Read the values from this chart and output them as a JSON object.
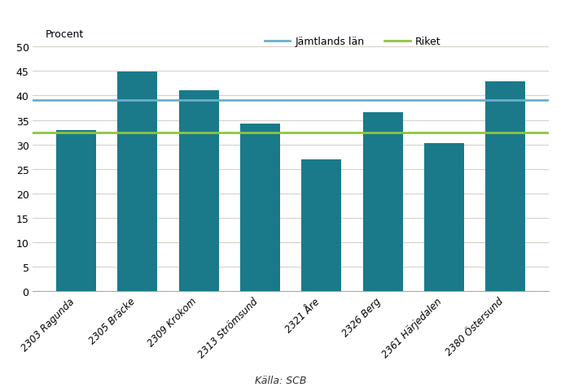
{
  "categories": [
    "2303 Ragunda",
    "2305 Bräcke",
    "2309 Krokom",
    "2313 Strömsund",
    "2321 Åre",
    "2326 Berg",
    "2361 Härjedalen",
    "2380 Östersund"
  ],
  "values": [
    33.0,
    44.8,
    41.0,
    34.3,
    27.0,
    36.5,
    30.2,
    42.8
  ],
  "bar_color": "#1a7a8a",
  "jamtlands_lan_value": 39.0,
  "riket_value": 32.5,
  "jamtlands_lan_color": "#6ab0c8",
  "riket_color": "#8dc63f",
  "ylabel": "Procent",
  "source_label": "Källa: SCB",
  "legend_jamtlands": "Jämtlands län",
  "legend_riket": "Riket",
  "ylim": [
    0,
    50
  ],
  "yticks": [
    0,
    5,
    10,
    15,
    20,
    25,
    30,
    35,
    40,
    45,
    50
  ],
  "background_color": "#ffffff",
  "grid_color": "#d8d0c8",
  "bar_width": 0.65
}
